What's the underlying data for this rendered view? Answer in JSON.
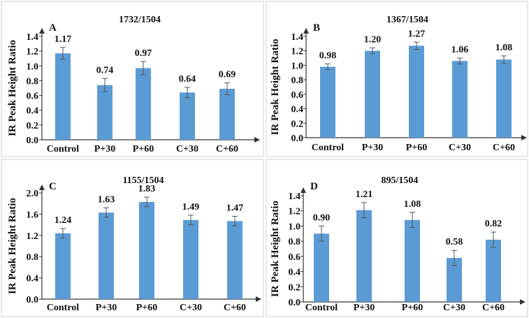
{
  "chart_data": [
    {
      "type": "bar",
      "panel_label": "A",
      "title": "1732/1504",
      "ylabel": "IR Peak Height Ratio",
      "categories": [
        "Control",
        "P+30",
        "P+60",
        "C+30",
        "C+60"
      ],
      "values": [
        1.17,
        0.74,
        0.97,
        0.64,
        0.69
      ],
      "value_labels": [
        "1.17",
        "0.74",
        "0.97",
        "0.64",
        "0.69"
      ],
      "error": [
        0.08,
        0.09,
        0.09,
        0.07,
        0.08
      ],
      "ylim": [
        0,
        1.4
      ],
      "yticks": [
        "0.0",
        "0.2",
        "0.4",
        "0.6",
        "0.8",
        "1.0",
        "1.2",
        "1.4"
      ],
      "bar_color": "#5b9bd5"
    },
    {
      "type": "bar",
      "panel_label": "B",
      "title": "1367/1504",
      "ylabel": "IR Peak Height Ratio",
      "categories": [
        "Control",
        "P+30",
        "P+60",
        "C+30",
        "C+60"
      ],
      "values": [
        0.98,
        1.2,
        1.27,
        1.06,
        1.08
      ],
      "value_labels": [
        "0.98",
        "1.20",
        "1.27",
        "1.06",
        "1.08"
      ],
      "error": [
        0.04,
        0.04,
        0.05,
        0.04,
        0.05
      ],
      "ylim": [
        0,
        1.4
      ],
      "yticks": [
        "0.0",
        "0.2",
        "0.4",
        "0.6",
        "0.8",
        "1.0",
        "1.2",
        "1.4"
      ],
      "bar_color": "#5b9bd5"
    },
    {
      "type": "bar",
      "panel_label": "C",
      "title": "1155/1504",
      "ylabel": "IR Peak Height Ratio",
      "categories": [
        "Control",
        "P+30",
        "P+60",
        "C+30",
        "C+60"
      ],
      "values": [
        1.24,
        1.63,
        1.83,
        1.49,
        1.47
      ],
      "value_labels": [
        "1.24",
        "1.63",
        "1.83",
        "1.49",
        "1.47"
      ],
      "error": [
        0.09,
        0.09,
        0.09,
        0.09,
        0.09
      ],
      "ylim": [
        0,
        2.0
      ],
      "yticks": [
        "0.0",
        "0.4",
        "0.8",
        "1.2",
        "1.6",
        "2.0"
      ],
      "bar_color": "#5b9bd5"
    },
    {
      "type": "bar",
      "panel_label": "D",
      "title": "895/1504",
      "ylabel": "IR Peak Height Ratio",
      "categories": [
        "Control",
        "P+30",
        "P+60",
        "C+30",
        "C+60"
      ],
      "values": [
        0.9,
        1.21,
        1.08,
        0.58,
        0.82
      ],
      "value_labels": [
        "0.90",
        "1.21",
        "1.08",
        "0.58",
        "0.82"
      ],
      "error": [
        0.1,
        0.1,
        0.1,
        0.1,
        0.1
      ],
      "ylim": [
        0,
        1.4
      ],
      "yticks": [
        "0.0",
        "0.2",
        "0.4",
        "0.6",
        "0.8",
        "1.0",
        "1.2",
        "1.4"
      ],
      "bar_color": "#5b9bd5"
    }
  ]
}
